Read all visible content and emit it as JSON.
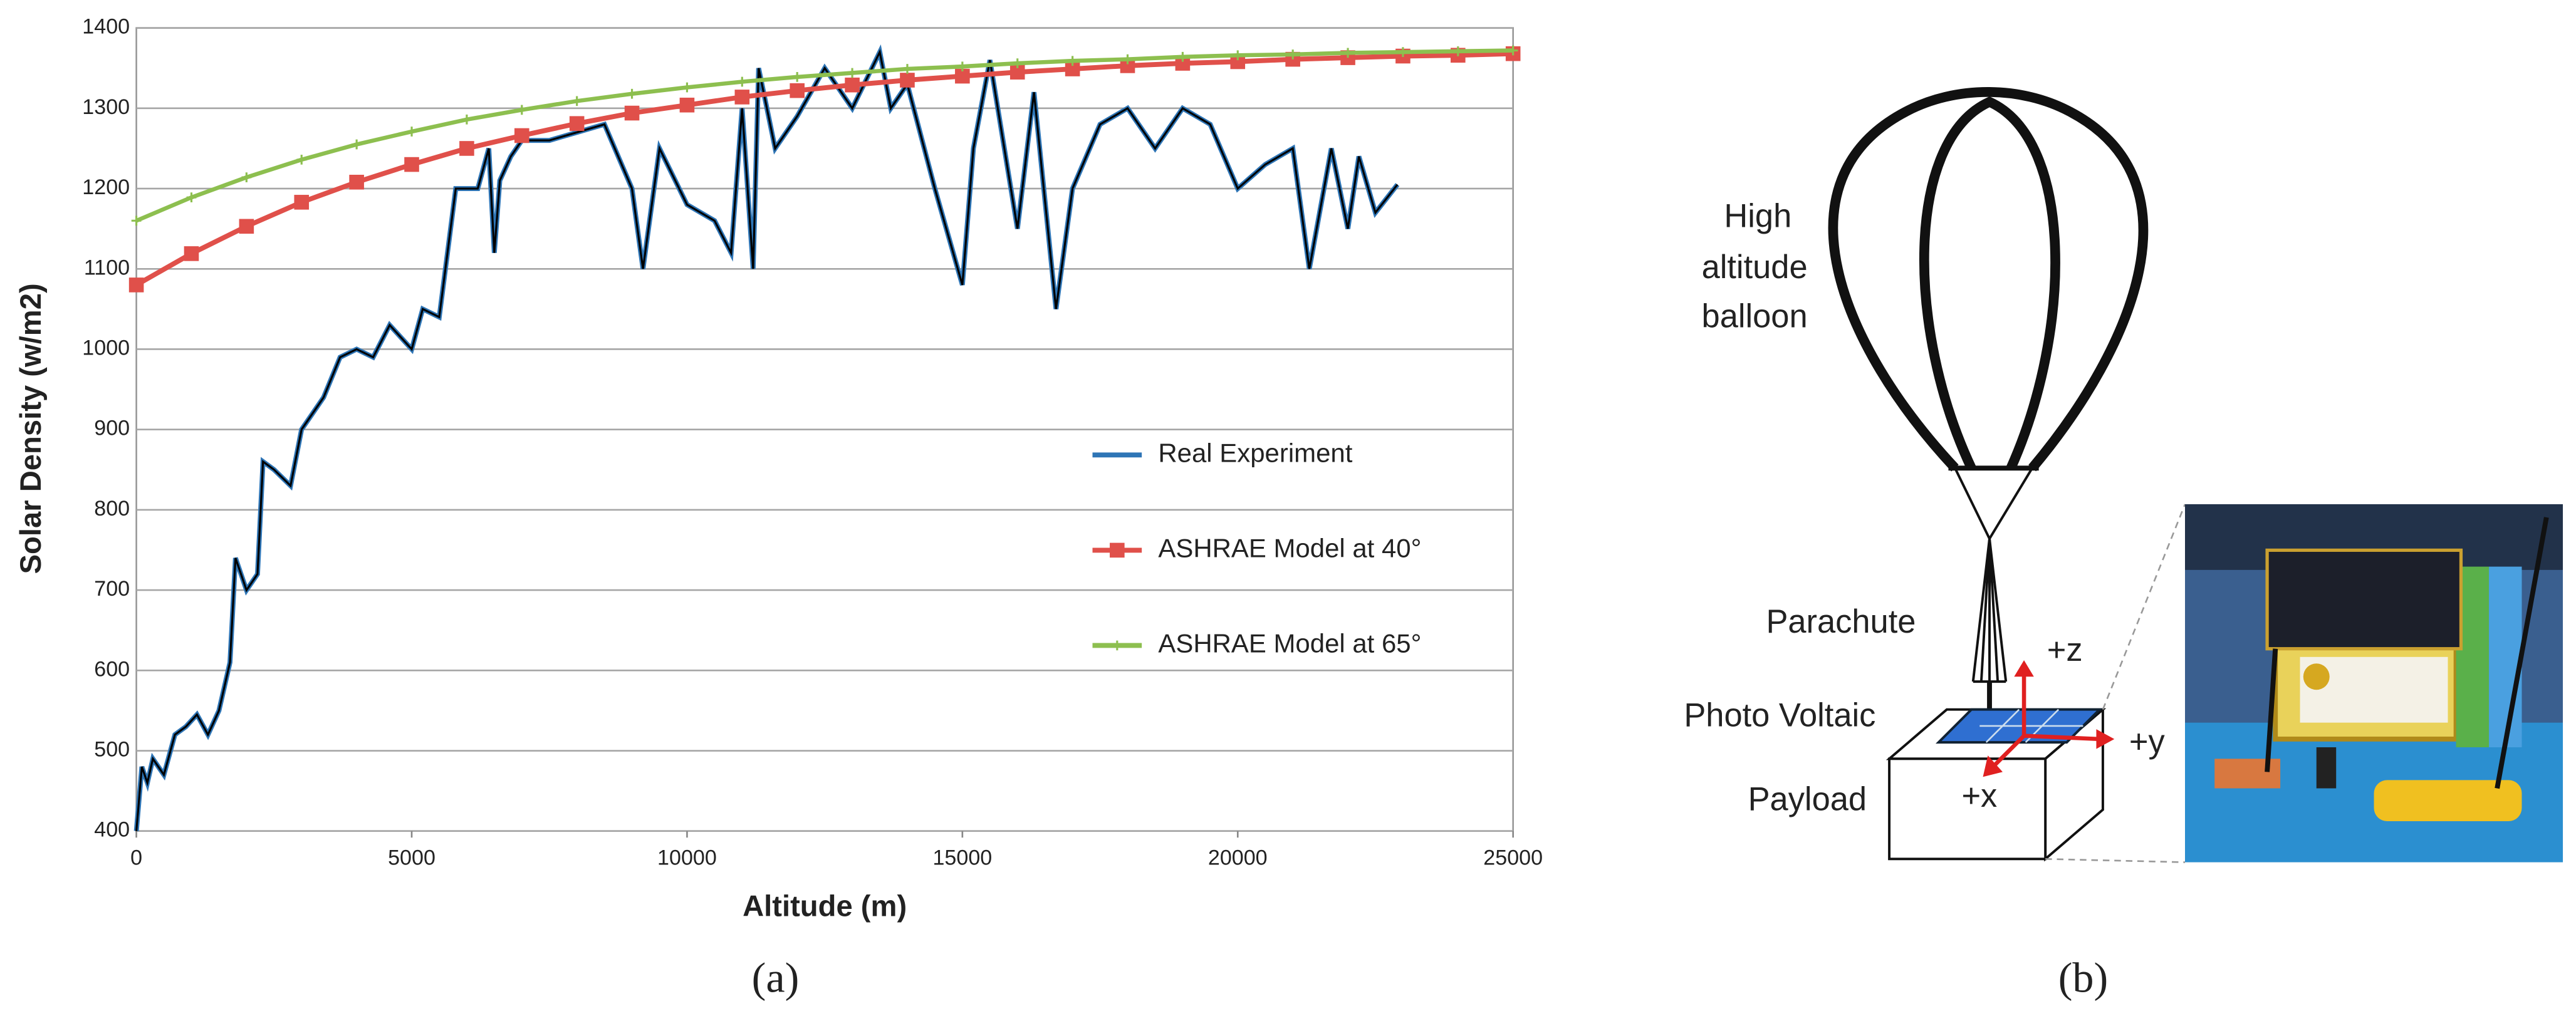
{
  "chart_data": {
    "type": "line",
    "xlabel": "Altitude (m)",
    "ylabel": "Solar Density (w/m2)",
    "xlim": [
      0,
      25000
    ],
    "ylim": [
      400,
      1400
    ],
    "xticks": [
      0,
      5000,
      10000,
      15000,
      20000,
      25000
    ],
    "yticks": [
      400,
      500,
      600,
      700,
      800,
      900,
      1000,
      1100,
      1200,
      1300,
      1400
    ],
    "grid": true,
    "legend": "center right",
    "series": [
      {
        "name": "Real Experiment",
        "color": "#2e75b6",
        "marker": "none",
        "x": [
          0,
          100,
          200,
          300,
          500,
          700,
          900,
          1100,
          1300,
          1500,
          1700,
          1800,
          2000,
          2200,
          2300,
          2500,
          2800,
          3000,
          3200,
          3400,
          3700,
          4000,
          4300,
          4600,
          5000,
          5200,
          5500,
          5800,
          6200,
          6400,
          6500,
          6600,
          6800,
          7000,
          7500,
          8000,
          8500,
          9000,
          9200,
          9500,
          10000,
          10500,
          10800,
          11000,
          11200,
          11300,
          11600,
          12000,
          12500,
          13000,
          13500,
          13700,
          14000,
          14500,
          15000,
          15200,
          15500,
          16000,
          16300,
          16700,
          17000,
          17500,
          18000,
          18500,
          19000,
          19500,
          20000,
          20500,
          21000,
          21300,
          21700,
          22000,
          22200,
          22500,
          22900
        ],
        "values": [
          400,
          480,
          460,
          490,
          470,
          520,
          530,
          545,
          520,
          550,
          610,
          740,
          700,
          720,
          860,
          850,
          830,
          900,
          920,
          940,
          990,
          1000,
          990,
          1030,
          1000,
          1050,
          1040,
          1200,
          1200,
          1250,
          1120,
          1210,
          1240,
          1260,
          1260,
          1270,
          1280,
          1200,
          1100,
          1250,
          1180,
          1160,
          1120,
          1300,
          1100,
          1350,
          1250,
          1290,
          1350,
          1300,
          1370,
          1300,
          1330,
          1200,
          1080,
          1250,
          1360,
          1150,
          1320,
          1050,
          1200,
          1280,
          1300,
          1250,
          1300,
          1280,
          1200,
          1230,
          1250,
          1100,
          1250,
          1150,
          1240,
          1170,
          1205
        ]
      },
      {
        "name": "ASHRAE Model at 40°",
        "color": "#e0504a",
        "marker": "square",
        "x": [
          0,
          1000,
          2000,
          3000,
          4000,
          5000,
          6000,
          7000,
          8000,
          9000,
          10000,
          11000,
          12000,
          13000,
          14000,
          15000,
          16000,
          17000,
          18000,
          19000,
          20000,
          21000,
          22000,
          23000,
          24000,
          25000
        ],
        "values": [
          1080,
          1119,
          1153,
          1183,
          1208,
          1230,
          1250,
          1266,
          1281,
          1294,
          1304,
          1314,
          1322,
          1329,
          1335,
          1340,
          1345,
          1349,
          1353,
          1356,
          1358,
          1361,
          1363,
          1365,
          1366,
          1368
        ]
      },
      {
        "name": "ASHRAE Model at 65°",
        "color": "#8dbf4f",
        "marker": "plus",
        "x": [
          0,
          1000,
          2000,
          3000,
          4000,
          5000,
          6000,
          7000,
          8000,
          9000,
          10000,
          11000,
          12000,
          13000,
          14000,
          15000,
          16000,
          17000,
          18000,
          19000,
          20000,
          21000,
          22000,
          23000,
          24000,
          25000
        ],
        "values": [
          1160,
          1189,
          1214,
          1236,
          1255,
          1271,
          1286,
          1298,
          1309,
          1318,
          1326,
          1333,
          1339,
          1344,
          1349,
          1352,
          1356,
          1359,
          1361,
          1364,
          1366,
          1367,
          1369,
          1370,
          1371,
          1372
        ]
      }
    ]
  },
  "caption_a": "(a)",
  "panel_b": {
    "balloon": [
      "High",
      "altitude",
      "balloon"
    ],
    "parachute": "Parachute",
    "photo_voltaic": "Photo Voltaic",
    "payload": "Payload",
    "axes": [
      "+z",
      "+y",
      "+x"
    ],
    "caption": "(b)"
  }
}
